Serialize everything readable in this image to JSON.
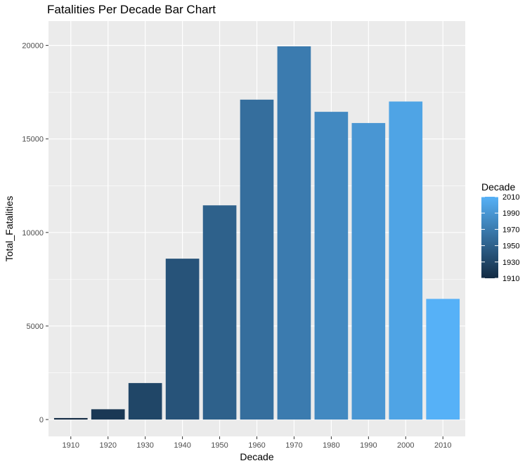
{
  "chart_data": {
    "type": "bar",
    "title": "Fatalities Per Decade Bar Chart",
    "xlabel": "Decade",
    "ylabel": "Total_Fatalities",
    "categories": [
      "1910",
      "1920",
      "1930",
      "1940",
      "1950",
      "1960",
      "1970",
      "1980",
      "1990",
      "2000",
      "2010"
    ],
    "values": [
      80,
      550,
      1950,
      8600,
      11450,
      17100,
      19950,
      16450,
      15850,
      17000,
      6450
    ],
    "ylim": [
      -900,
      21300
    ],
    "yticks": [
      0,
      5000,
      10000,
      15000,
      20000
    ],
    "ytick_labels": [
      "0",
      "5000",
      "10000",
      "15000",
      "20000"
    ],
    "grid": true,
    "background": "#ebebeb",
    "fill_scale": {
      "low_color": "#132b43",
      "high_color": "#56b1f7",
      "domain": [
        1910,
        2010
      ]
    },
    "legend": {
      "title": "Decade",
      "position": "right",
      "breaks": [
        "1910",
        "1930",
        "1950",
        "1970",
        "1990",
        "2010"
      ]
    }
  }
}
